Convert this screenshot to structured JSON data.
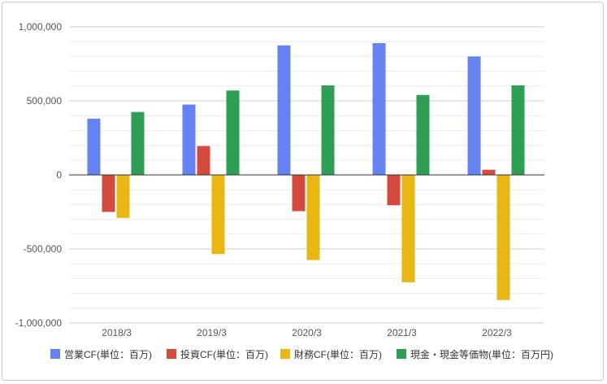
{
  "chart_data": {
    "type": "bar",
    "title": "",
    "xlabel": "",
    "ylabel": "",
    "ylim": [
      -1000000,
      1000000
    ],
    "yticks": [
      1000000,
      500000,
      0,
      -500000,
      -1000000
    ],
    "ytick_labels": [
      "1,000,000",
      "500,000",
      "0",
      "-500,000",
      "-1,000,000"
    ],
    "minor_grid_step": 100000,
    "grid": true,
    "legend_position": "bottom",
    "categories": [
      "2018/3",
      "2019/3",
      "2020/3",
      "2021/3",
      "2022/3"
    ],
    "series": [
      {
        "name": "営業CF(単位：百万)",
        "color": "#6482f0",
        "values": [
          380000,
          475000,
          875000,
          890000,
          800000
        ]
      },
      {
        "name": "投資CF(単位：百万)",
        "color": "#d54a3c",
        "values": [
          -250000,
          195000,
          -245000,
          -205000,
          35000
        ]
      },
      {
        "name": "財務CF(単位：百万)",
        "color": "#e8b713",
        "values": [
          -290000,
          -535000,
          -575000,
          -725000,
          -845000
        ]
      },
      {
        "name": "現金・現金等価物(単位：百万円)",
        "color": "#2e9e55",
        "values": [
          425000,
          570000,
          605000,
          540000,
          605000
        ]
      }
    ]
  }
}
